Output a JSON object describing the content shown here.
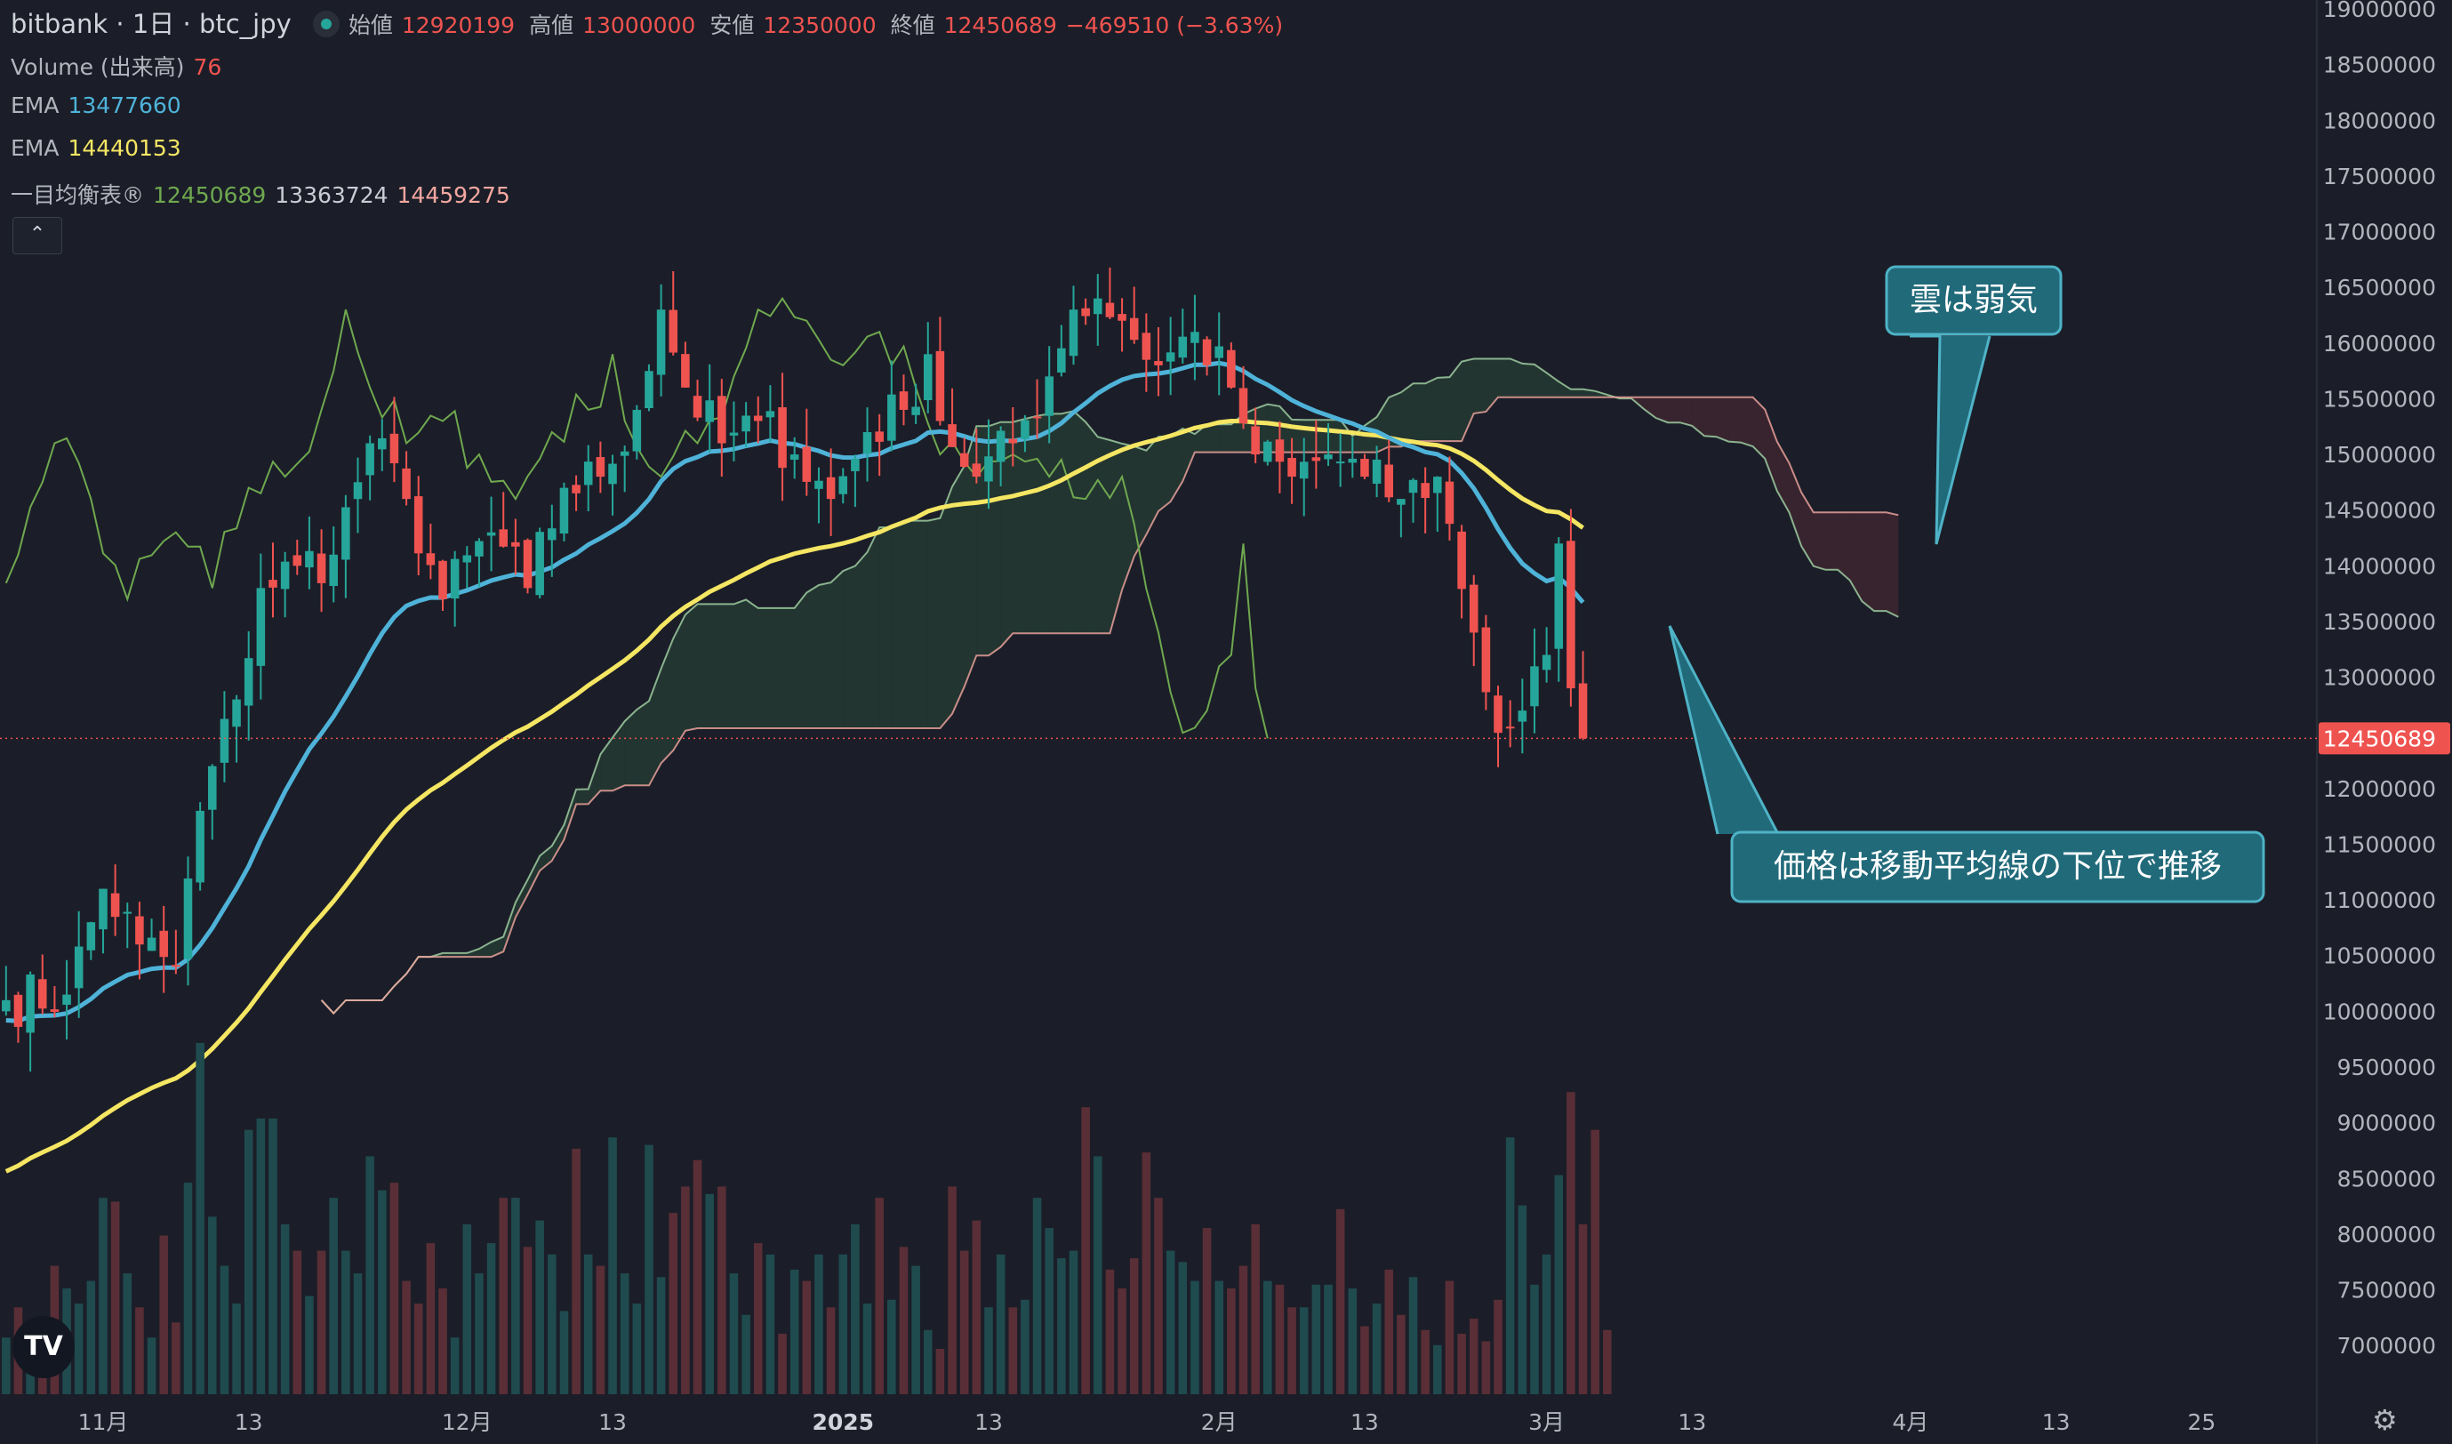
{
  "header": {
    "symbol": "bitbank · 1日 · btc_jpy",
    "open_label": "始値",
    "open": "12920199",
    "high_label": "高値",
    "high": "13000000",
    "low_label": "安値",
    "low": "12350000",
    "close_label": "終値",
    "close": "12450689",
    "change": "−469510 (−3.63%)"
  },
  "indicators": {
    "volume_label": "Volume (出来高)",
    "volume_value": "76",
    "ema1_label": "EMA",
    "ema1_value": "13477660",
    "ema2_label": "EMA",
    "ema2_value": "14440153",
    "ichimoku_label": "一目均衡表®",
    "ichimoku_v1": "12450689",
    "ichimoku_v2": "13363724",
    "ichimoku_v3": "14459275"
  },
  "collapse_button": "⌃",
  "logo": "TV",
  "settings_icon": "⚙",
  "colors": {
    "background": "#1b1e28",
    "up": "#26a69a",
    "down": "#ef5350",
    "ema_fast": "#4fb3d9",
    "ema_slow": "#f5e663",
    "chikou": "#6fa84f",
    "senkou_a": "#a5d6a7",
    "senkou_b": "#f4a7a0",
    "cloud_bull": "#243a33",
    "cloud_bear": "#3d2630",
    "callout_bg": "#216a7a",
    "callout_border": "#4fb3c7",
    "price_tag": "#ef5350"
  },
  "chart_data": {
    "type": "candlestick",
    "y_ticks": [
      19000000,
      18500000,
      18000000,
      17500000,
      17000000,
      16500000,
      16000000,
      15500000,
      15000000,
      14500000,
      14000000,
      13500000,
      13000000,
      12500000,
      12000000,
      11500000,
      11000000,
      10500000,
      10000000,
      9500000,
      9000000,
      8500000,
      8000000,
      7500000,
      7000000
    ],
    "ylim": [
      6650000,
      19000000
    ],
    "x_ticks": [
      {
        "label": "11月",
        "i": 8
      },
      {
        "label": "13",
        "i": 20
      },
      {
        "label": "12月",
        "i": 38
      },
      {
        "label": "13",
        "i": 50
      },
      {
        "label": "2025",
        "i": 69
      },
      {
        "label": "13",
        "i": 81
      },
      {
        "label": "2月",
        "i": 100
      },
      {
        "label": "13",
        "i": 112
      },
      {
        "label": "3月",
        "i": 127
      },
      {
        "label": "13",
        "i": 139
      },
      {
        "label": "4月",
        "i": 157
      },
      {
        "label": "13",
        "i": 169
      },
      {
        "label": "25",
        "i": 181
      }
    ],
    "bar_count_visible": 191,
    "last_price": 12450689,
    "last_price_label": "12450689",
    "close_anchors": [
      [
        0,
        10100000
      ],
      [
        5,
        10150000
      ],
      [
        8,
        11100000
      ],
      [
        11,
        10600000
      ],
      [
        14,
        10400000
      ],
      [
        16,
        11800000
      ],
      [
        19,
        12800000
      ],
      [
        21,
        13800000
      ],
      [
        24,
        14000000
      ],
      [
        27,
        14100000
      ],
      [
        30,
        15100000
      ],
      [
        33,
        14600000
      ],
      [
        36,
        13700000
      ],
      [
        40,
        14300000
      ],
      [
        43,
        13800000
      ],
      [
        46,
        14700000
      ],
      [
        49,
        14800000
      ],
      [
        52,
        15400000
      ],
      [
        54,
        16300000
      ],
      [
        56,
        15600000
      ],
      [
        59,
        15100000
      ],
      [
        62,
        15300000
      ],
      [
        65,
        15000000
      ],
      [
        68,
        14600000
      ],
      [
        71,
        15200000
      ],
      [
        74,
        15400000
      ],
      [
        76,
        15900000
      ],
      [
        77,
        15300000
      ],
      [
        80,
        14800000
      ],
      [
        83,
        15100000
      ],
      [
        86,
        15700000
      ],
      [
        88,
        16300000
      ],
      [
        90,
        16400000
      ],
      [
        92,
        16200000
      ],
      [
        95,
        15800000
      ],
      [
        98,
        16100000
      ],
      [
        101,
        15600000
      ],
      [
        103,
        15000000
      ],
      [
        106,
        14800000
      ],
      [
        109,
        15000000
      ],
      [
        112,
        14800000
      ],
      [
        115,
        14600000
      ],
      [
        118,
        14800000
      ],
      [
        121,
        13400000
      ],
      [
        123,
        12500000
      ],
      [
        125,
        12700000
      ],
      [
        127,
        13200000
      ],
      [
        128,
        14200000
      ],
      [
        129,
        12900000
      ],
      [
        130,
        12450689
      ]
    ],
    "volume": [
      1500,
      2300,
      1300,
      1900,
      3400,
      2800,
      2400,
      3000,
      5200,
      5100,
      3200,
      2300,
      1500,
      4200,
      1900,
      5600,
      9300,
      4700,
      3400,
      2400,
      7000,
      7300,
      7300,
      4500,
      3800,
      2600,
      3800,
      5200,
      3800,
      3200,
      6300,
      5400,
      5600,
      3000,
      2400,
      4000,
      2800,
      1500,
      4500,
      3200,
      4000,
      5200,
      5200,
      3900,
      4600,
      3700,
      2200,
      6500,
      3700,
      3400,
      6800,
      3200,
      2400,
      6600,
      3100,
      4800,
      5500,
      6200,
      5300,
      5500,
      3200,
      2100,
      4000,
      3700,
      1600,
      3300,
      3000,
      3700,
      2300,
      3700,
      4500,
      2400,
      5200,
      2500,
      3900,
      3400,
      1700,
      1200,
      5500,
      3800,
      4600,
      2300,
      3700,
      2300,
      2500,
      5200,
      4400,
      3600,
      3800,
      7600,
      6300,
      3300,
      2800,
      3600,
      6400,
      5200,
      3800,
      3500,
      3000,
      4400,
      3000,
      2800,
      3400,
      4500,
      3000,
      2900,
      2300,
      2300,
      2900,
      2900,
      4900,
      2800,
      1800,
      2400,
      3300,
      2100,
      3100,
      1700,
      1300,
      3000,
      1600,
      2000,
      1400,
      2500,
      6800,
      5000,
      2900,
      3700,
      5800,
      8000,
      4500,
      7000,
      1700
    ]
  },
  "annotations": [
    {
      "text": "雲は弱気"
    },
    {
      "text": "価格は移動平均線の下位で推移"
    }
  ]
}
